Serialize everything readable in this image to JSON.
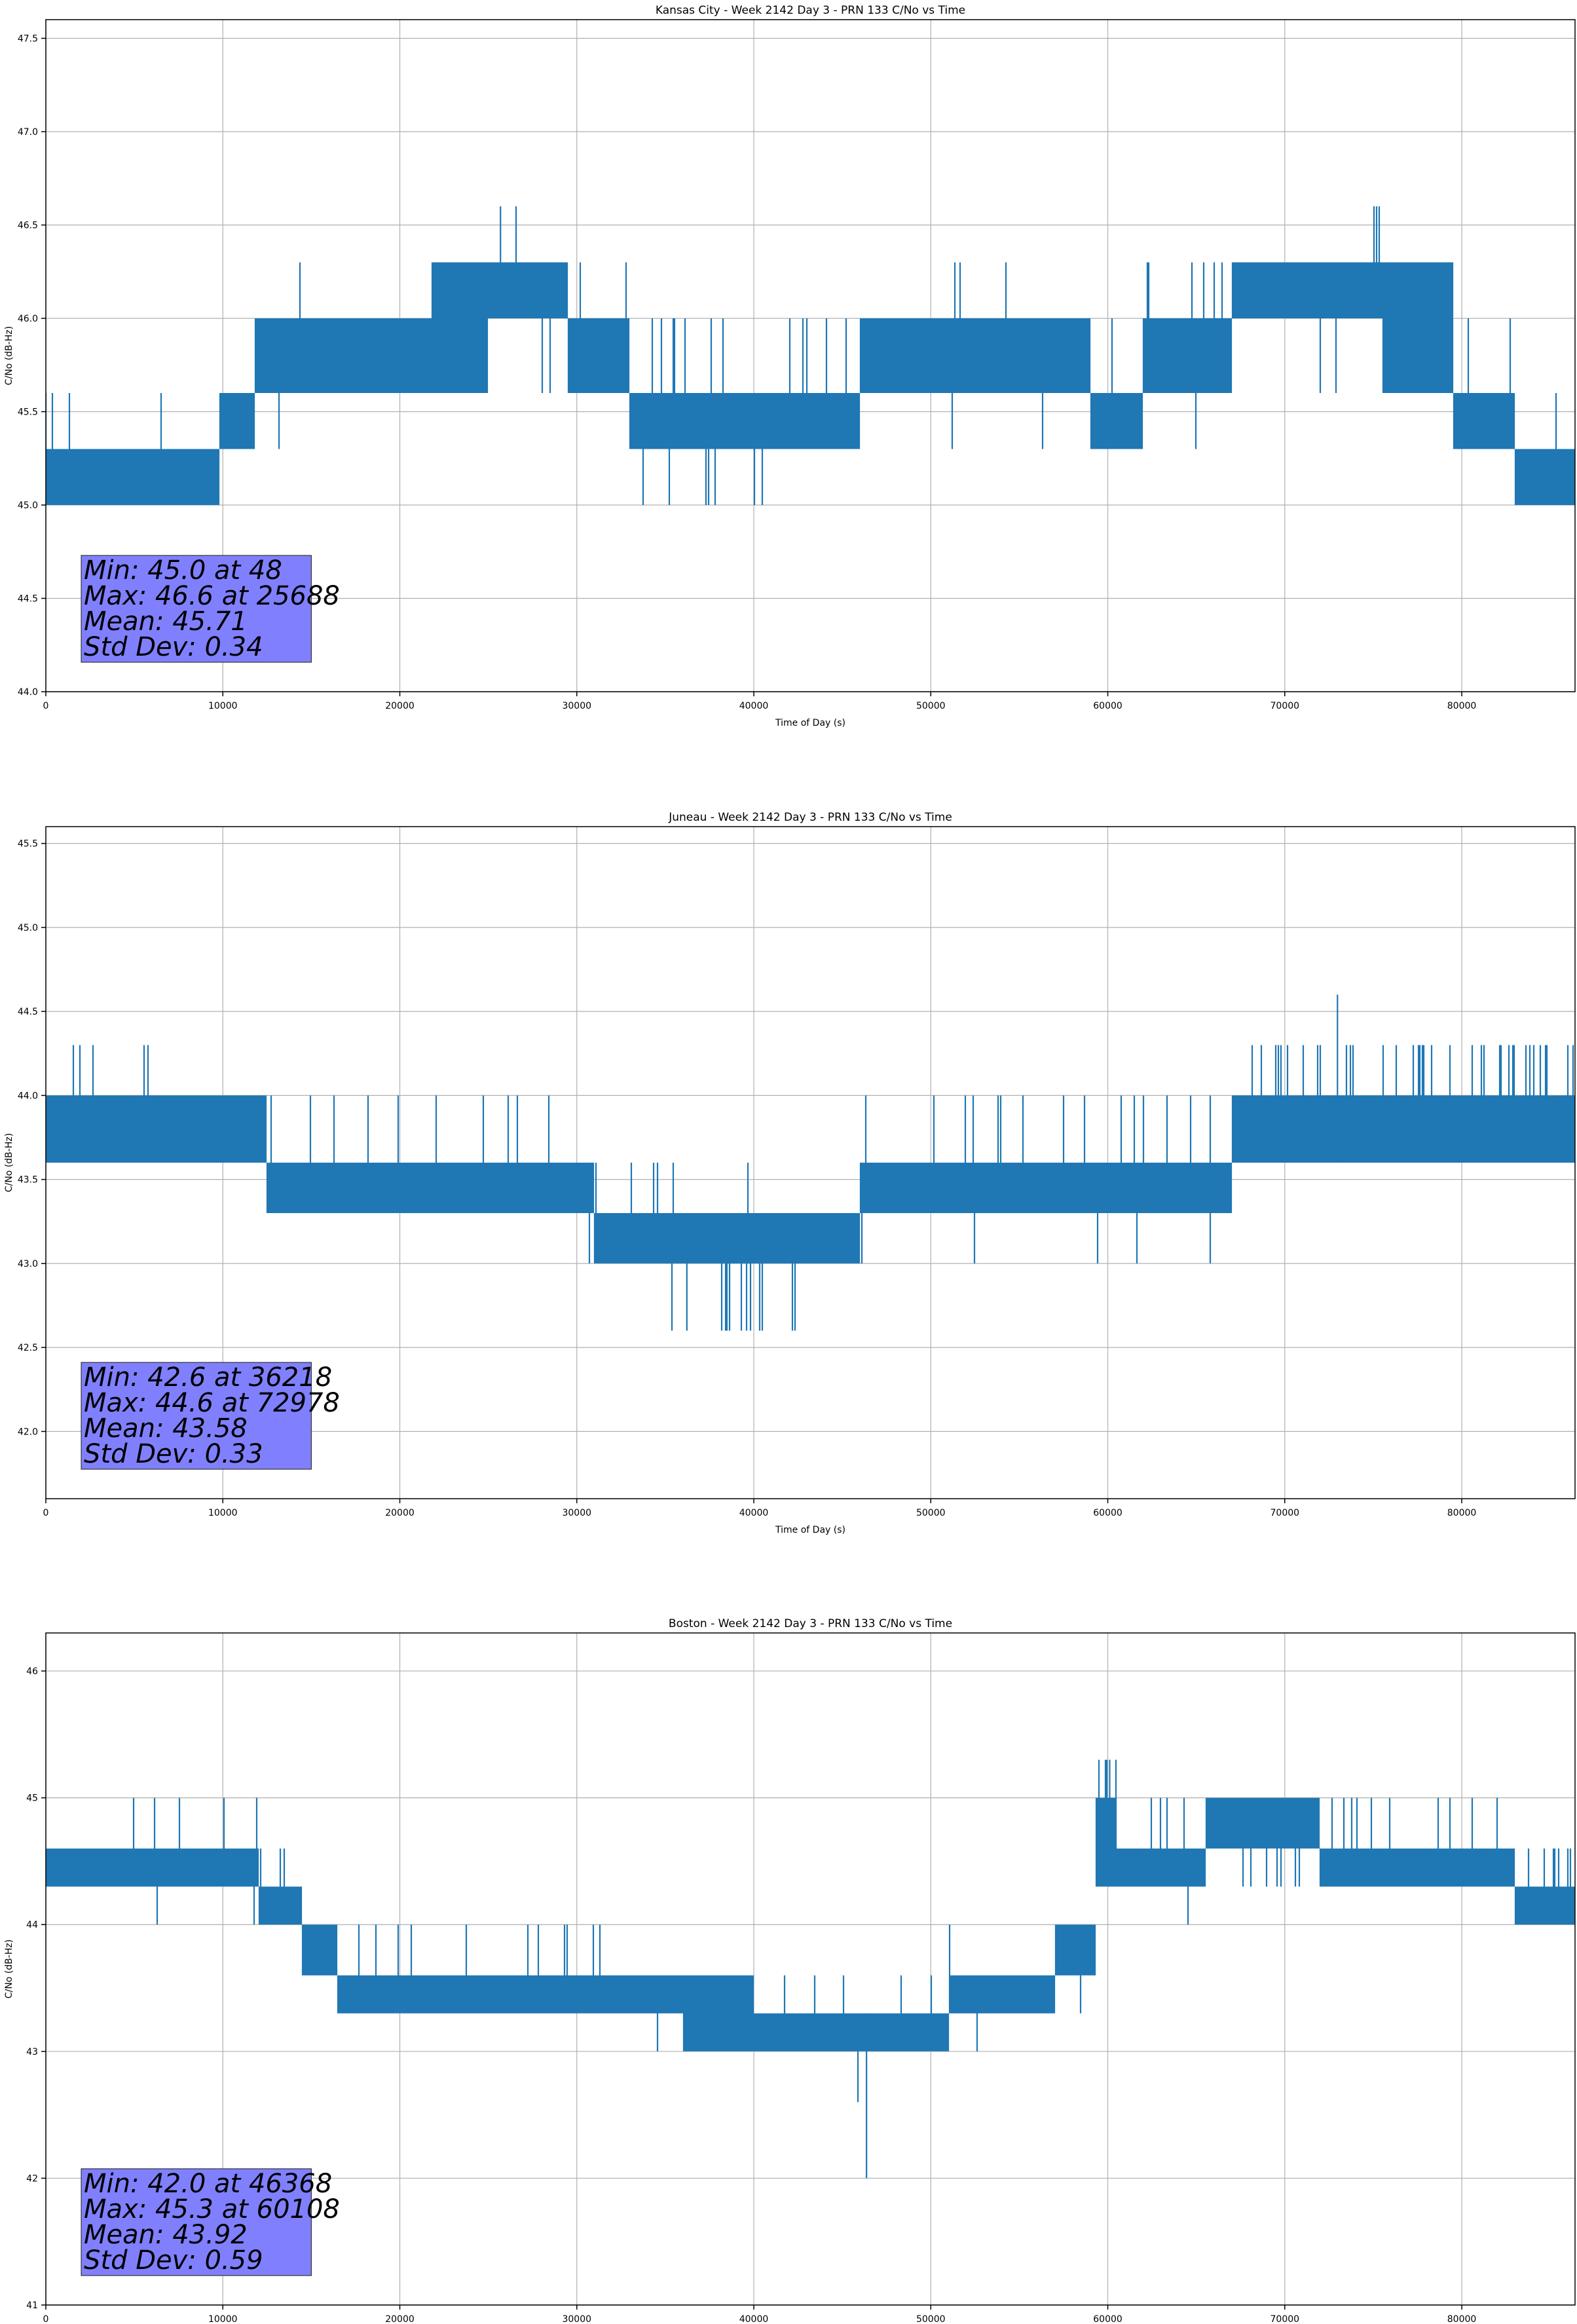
{
  "figure": {
    "line_color": "#1f77b4",
    "stats_box_color": "#8080ff",
    "grid_color": "#b0b0b0"
  },
  "chart_data": [
    {
      "type": "line",
      "title": "Kansas City - Week 2142 Day 3 - PRN 133 C/No vs Time",
      "xlabel": "Time of Day (s)",
      "ylabel": "C/No (dB-Hz)",
      "xlim": [
        0,
        86400
      ],
      "ylim": [
        44.0,
        47.6
      ],
      "xticks": [
        0,
        10000,
        20000,
        30000,
        40000,
        50000,
        60000,
        70000,
        80000
      ],
      "yticks": [
        44.0,
        44.5,
        45.0,
        45.5,
        46.0,
        46.5,
        47.0,
        47.5
      ],
      "ytick_decimals": 1,
      "grid": true,
      "stats": [
        "Min: 45.0 at 48",
        "Max: 46.6 at 25688",
        "Mean: 45.71",
        "Std Dev: 0.34"
      ],
      "extremes": [
        [
          48,
          45.0
        ],
        [
          25688,
          46.6
        ]
      ],
      "segments": [
        {
          "x0": 0,
          "x1": 9800,
          "low": 45.0,
          "high": 45.3,
          "spikes_up": [
            45.6,
            0.04
          ],
          "spikes_down": [
            45.0,
            0.0
          ]
        },
        {
          "x0": 9800,
          "x1": 11800,
          "low": 45.3,
          "high": 45.6,
          "spikes_up": [
            46.0,
            0.05
          ],
          "spikes_down": [
            45.0,
            0.0
          ]
        },
        {
          "x0": 11800,
          "x1": 21800,
          "low": 45.6,
          "high": 46.0,
          "spikes_up": [
            46.3,
            0.01
          ],
          "spikes_down": [
            45.3,
            0.01
          ]
        },
        {
          "x0": 21800,
          "x1": 25000,
          "low": 45.6,
          "high": 46.3,
          "spikes_up": [
            46.3,
            0.0
          ],
          "spikes_down": [
            45.6,
            0.0
          ]
        },
        {
          "x0": 25000,
          "x1": 29500,
          "low": 46.0,
          "high": 46.3,
          "spikes_up": [
            46.6,
            0.01
          ],
          "spikes_down": [
            45.6,
            0.04
          ]
        },
        {
          "x0": 29500,
          "x1": 33000,
          "low": 45.6,
          "high": 46.0,
          "spikes_up": [
            46.3,
            0.04
          ],
          "spikes_down": [
            45.6,
            0.0
          ]
        },
        {
          "x0": 33000,
          "x1": 41500,
          "low": 45.3,
          "high": 45.6,
          "spikes_up": [
            46.0,
            0.05
          ],
          "spikes_down": [
            45.0,
            0.03
          ]
        },
        {
          "x0": 41500,
          "x1": 46000,
          "low": 45.3,
          "high": 45.6,
          "spikes_up": [
            46.0,
            0.1
          ],
          "spikes_down": [
            45.3,
            0.0
          ]
        },
        {
          "x0": 46000,
          "x1": 51000,
          "low": 45.6,
          "high": 46.0,
          "spikes_up": [
            46.0,
            0.0
          ],
          "spikes_down": [
            45.3,
            0.01
          ]
        },
        {
          "x0": 51000,
          "x1": 55500,
          "low": 45.6,
          "high": 46.0,
          "spikes_up": [
            46.3,
            0.07
          ],
          "spikes_down": [
            45.3,
            0.01
          ]
        },
        {
          "x0": 55500,
          "x1": 59000,
          "low": 45.6,
          "high": 46.0,
          "spikes_up": [
            46.0,
            0.0
          ],
          "spikes_down": [
            45.3,
            0.01
          ]
        },
        {
          "x0": 59000,
          "x1": 62000,
          "low": 45.3,
          "high": 45.6,
          "spikes_up": [
            46.0,
            0.03
          ],
          "spikes_down": [
            45.0,
            0.005
          ]
        },
        {
          "x0": 62000,
          "x1": 67000,
          "low": 45.6,
          "high": 46.0,
          "spikes_up": [
            46.3,
            0.05
          ],
          "spikes_down": [
            45.3,
            0.01
          ]
        },
        {
          "x0": 67000,
          "x1": 73500,
          "low": 46.0,
          "high": 46.3,
          "spikes_up": [
            46.6,
            0.0
          ],
          "spikes_down": [
            45.6,
            0.05
          ]
        },
        {
          "x0": 73500,
          "x1": 75500,
          "low": 46.0,
          "high": 46.3,
          "spikes_up": [
            46.6,
            0.15
          ],
          "spikes_down": [
            45.6,
            0.0
          ]
        },
        {
          "x0": 75500,
          "x1": 79500,
          "low": 45.6,
          "high": 46.3,
          "spikes_up": [
            46.3,
            0.0
          ],
          "spikes_down": [
            45.6,
            0.0
          ]
        },
        {
          "x0": 79500,
          "x1": 83000,
          "low": 45.3,
          "high": 45.6,
          "spikes_up": [
            46.0,
            0.04
          ],
          "spikes_down": [
            45.3,
            0.0
          ]
        },
        {
          "x0": 83000,
          "x1": 86400,
          "low": 45.0,
          "high": 45.3,
          "spikes_up": [
            45.6,
            0.01
          ],
          "spikes_down": [
            45.0,
            0.0
          ]
        }
      ]
    },
    {
      "type": "line",
      "title": "Juneau - Week 2142 Day 3 - PRN 133 C/No vs Time",
      "xlabel": "Time of Day (s)",
      "ylabel": "C/No (dB-Hz)",
      "xlim": [
        0,
        86400
      ],
      "ylim": [
        41.6,
        45.6
      ],
      "xticks": [
        0,
        10000,
        20000,
        30000,
        40000,
        50000,
        60000,
        70000,
        80000
      ],
      "yticks": [
        42.0,
        42.5,
        43.0,
        43.5,
        44.0,
        44.5,
        45.0,
        45.5
      ],
      "ytick_decimals": 1,
      "grid": true,
      "stats": [
        "Min: 42.6 at 36218",
        "Max: 44.6 at 72978",
        "Mean: 43.58",
        "Std Dev: 0.33"
      ],
      "extremes": [
        [
          36218,
          42.6
        ],
        [
          72978,
          44.6
        ]
      ],
      "segments": [
        {
          "x0": 0,
          "x1": 7800,
          "low": 43.6,
          "high": 44.0,
          "spikes_up": [
            44.3,
            0.07
          ],
          "spikes_down": [
            43.3,
            0.005
          ]
        },
        {
          "x0": 7800,
          "x1": 12500,
          "low": 43.6,
          "high": 44.0,
          "spikes_up": [
            44.0,
            0.0
          ],
          "spikes_down": [
            43.3,
            0.01
          ]
        },
        {
          "x0": 12500,
          "x1": 31000,
          "low": 43.3,
          "high": 43.6,
          "spikes_up": [
            44.0,
            0.03
          ],
          "spikes_down": [
            43.0,
            0.01
          ]
        },
        {
          "x0": 31000,
          "x1": 38000,
          "low": 43.0,
          "high": 43.3,
          "spikes_up": [
            43.6,
            0.04
          ],
          "spikes_down": [
            42.6,
            0.01
          ]
        },
        {
          "x0": 38000,
          "x1": 43500,
          "low": 43.0,
          "high": 43.3,
          "spikes_up": [
            43.6,
            0.03
          ],
          "spikes_down": [
            42.6,
            0.12
          ]
        },
        {
          "x0": 43500,
          "x1": 46000,
          "low": 43.0,
          "high": 43.3,
          "spikes_up": [
            43.6,
            0.02
          ],
          "spikes_down": [
            43.0,
            0.0
          ]
        },
        {
          "x0": 46000,
          "x1": 67000,
          "low": 43.3,
          "high": 43.6,
          "spikes_up": [
            44.0,
            0.05
          ],
          "spikes_down": [
            43.0,
            0.01
          ]
        },
        {
          "x0": 67000,
          "x1": 86400,
          "low": 43.6,
          "high": 44.0,
          "spikes_up": [
            44.3,
            0.1
          ],
          "spikes_down": [
            43.6,
            0.0
          ]
        }
      ]
    },
    {
      "type": "line",
      "title": "Boston - Week 2142 Day 3 - PRN 133 C/No vs Time",
      "xlabel": "Time of Day (s)",
      "ylabel": "C/No (dB-Hz)",
      "xlim": [
        0,
        86400
      ],
      "ylim": [
        41.0,
        46.3
      ],
      "xticks": [
        0,
        10000,
        20000,
        30000,
        40000,
        50000,
        60000,
        70000,
        80000
      ],
      "yticks": [
        41,
        42,
        43,
        44,
        45,
        46
      ],
      "ytick_decimals": 0,
      "grid": true,
      "stats": [
        "Min: 42.0 at 46368",
        "Max: 45.3 at 60108",
        "Mean: 43.92",
        "Std Dev: 0.59"
      ],
      "extremes": [
        [
          46368,
          42.0
        ],
        [
          60108,
          45.3
        ]
      ],
      "segments": [
        {
          "x0": 0,
          "x1": 12000,
          "low": 44.3,
          "high": 44.6,
          "spikes_up": [
            45.0,
            0.04
          ],
          "spikes_down": [
            44.0,
            0.005
          ]
        },
        {
          "x0": 12000,
          "x1": 14500,
          "low": 44.0,
          "high": 44.3,
          "spikes_up": [
            44.6,
            0.08
          ],
          "spikes_down": [
            43.6,
            0.01
          ]
        },
        {
          "x0": 14500,
          "x1": 16500,
          "low": 43.6,
          "high": 44.0,
          "spikes_up": [
            44.3,
            0.04
          ],
          "spikes_down": [
            43.3,
            0.03
          ]
        },
        {
          "x0": 16500,
          "x1": 36000,
          "low": 43.3,
          "high": 43.6,
          "spikes_up": [
            44.0,
            0.05
          ],
          "spikes_down": [
            43.0,
            0.003
          ]
        },
        {
          "x0": 36000,
          "x1": 40000,
          "low": 43.0,
          "high": 43.6,
          "spikes_up": [
            43.6,
            0.0
          ],
          "spikes_down": [
            43.0,
            0.0
          ]
        },
        {
          "x0": 40000,
          "x1": 51000,
          "low": 43.0,
          "high": 43.3,
          "spikes_up": [
            43.6,
            0.05
          ],
          "spikes_down": [
            42.6,
            0.02
          ]
        },
        {
          "x0": 51000,
          "x1": 57000,
          "low": 43.3,
          "high": 43.6,
          "spikes_up": [
            44.0,
            0.03
          ],
          "spikes_down": [
            43.0,
            0.03
          ]
        },
        {
          "x0": 57000,
          "x1": 59300,
          "low": 43.6,
          "high": 44.0,
          "spikes_up": [
            44.3,
            0.05
          ],
          "spikes_down": [
            43.3,
            0.02
          ]
        },
        {
          "x0": 59300,
          "x1": 60500,
          "low": 44.3,
          "high": 45.0,
          "spikes_up": [
            45.3,
            0.2
          ],
          "spikes_down": [
            44.0,
            0.0
          ]
        },
        {
          "x0": 60500,
          "x1": 65500,
          "low": 44.3,
          "high": 44.6,
          "spikes_up": [
            45.0,
            0.05
          ],
          "spikes_down": [
            44.0,
            0.01
          ]
        },
        {
          "x0": 65500,
          "x1": 72000,
          "low": 44.6,
          "high": 45.0,
          "spikes_up": [
            45.3,
            0.01
          ],
          "spikes_down": [
            44.3,
            0.08
          ]
        },
        {
          "x0": 72000,
          "x1": 76500,
          "low": 44.3,
          "high": 44.6,
          "spikes_up": [
            45.0,
            0.1
          ],
          "spikes_down": [
            44.0,
            0.01
          ]
        },
        {
          "x0": 76500,
          "x1": 83000,
          "low": 44.3,
          "high": 44.6,
          "spikes_up": [
            45.0,
            0.03
          ],
          "spikes_down": [
            44.0,
            0.02
          ]
        },
        {
          "x0": 83000,
          "x1": 86400,
          "low": 44.0,
          "high": 44.3,
          "spikes_up": [
            44.6,
            0.08
          ],
          "spikes_down": [
            44.0,
            0.0
          ]
        }
      ]
    }
  ]
}
